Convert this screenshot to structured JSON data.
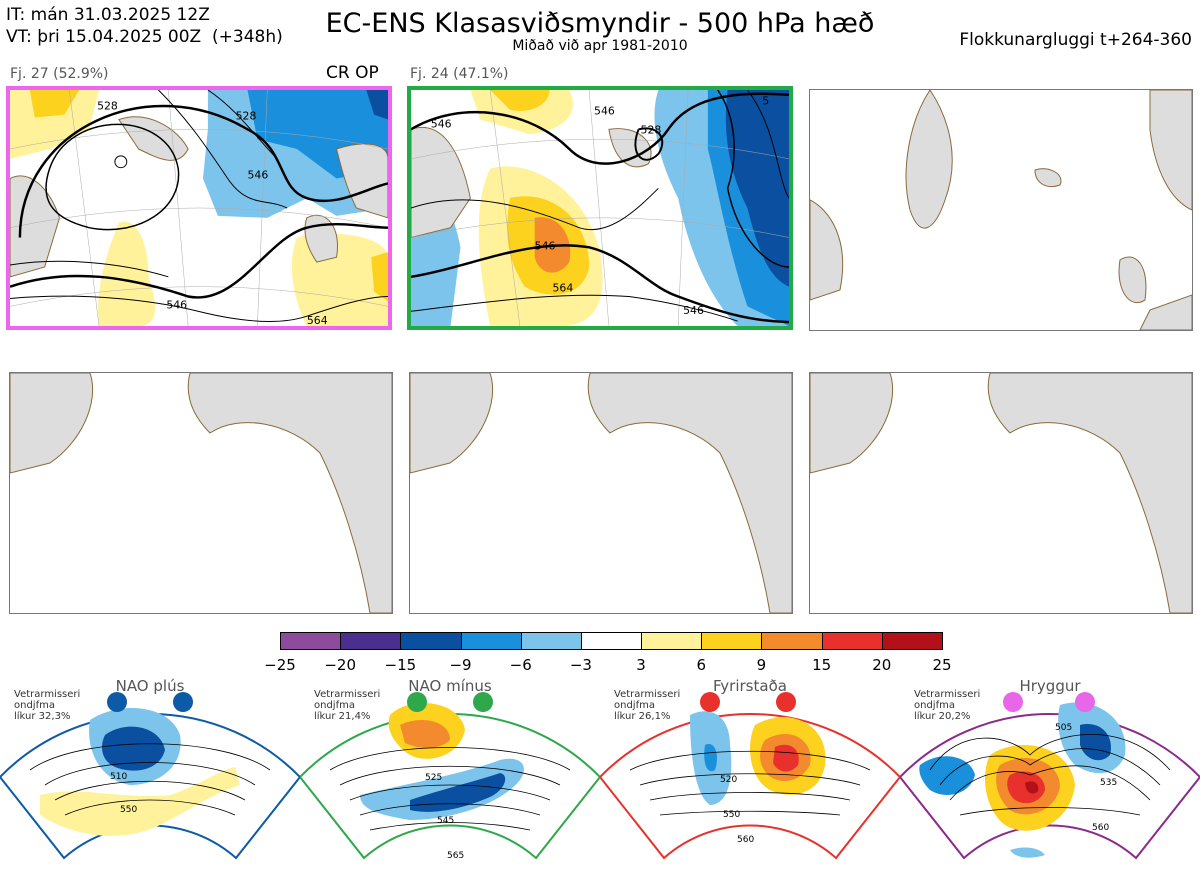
{
  "header": {
    "it_line": "IT: mán 31.03.2025 12Z",
    "vt_line": "VT: þri 15.04.2025 00Z  (+348h)",
    "title": "EC-ENS Klasasviðsmyndir - 500 hPa hæð",
    "subtitle": "Miðað við apr 1981-2010",
    "window": "Flokkunargluggi t+264-360"
  },
  "clusters": [
    {
      "label": "Fj. 27 (52.9%)",
      "tag": "CR OP",
      "frame_color": "#ee66ee",
      "contour_labels": [
        "528",
        "528",
        "546",
        "546",
        "564"
      ]
    },
    {
      "label": "Fj. 24 (47.1%)",
      "tag": "",
      "frame_color": "#22aa44",
      "contour_labels": [
        "546",
        "546",
        "528",
        "546",
        "564",
        "546",
        "5"
      ]
    }
  ],
  "colors": {
    "land": "#dddddd",
    "coast": "#8a6a3a"
  },
  "chart_data": {
    "type": "heatmap",
    "title": "EC-ENS Klasasviðsmyndir - 500 hPa hæð",
    "colorbar": {
      "ticks": [
        "−25",
        "−20",
        "−15",
        "−9",
        "−6",
        "−3",
        "3",
        "6",
        "9",
        "15",
        "20",
        "25"
      ],
      "bins": [
        {
          "from": -25,
          "to": -20,
          "color": "#8e4b9e"
        },
        {
          "from": -20,
          "to": -15,
          "color": "#4a2f8f"
        },
        {
          "from": -15,
          "to": -9,
          "color": "#0a4fa0"
        },
        {
          "from": -9,
          "to": -6,
          "color": "#1a8fdc"
        },
        {
          "from": -6,
          "to": -3,
          "color": "#7cc4ec"
        },
        {
          "from": -3,
          "to": 3,
          "color": "#ffffff"
        },
        {
          "from": 3,
          "to": 6,
          "color": "#fff29a"
        },
        {
          "from": 6,
          "to": 9,
          "color": "#fdd21e"
        },
        {
          "from": 9,
          "to": 15,
          "color": "#f48a2e"
        },
        {
          "from": 15,
          "to": 20,
          "color": "#e8312c"
        },
        {
          "from": 20,
          "to": 25,
          "color": "#b2101a"
        }
      ]
    }
  },
  "regimes": [
    {
      "name": "NAO plús",
      "info": [
        "Vetrarmisseri",
        "ondjfma",
        "líkur 32,3%"
      ],
      "color": "#0d5aa7",
      "labels": [
        "510",
        "550"
      ]
    },
    {
      "name": "NAO mínus",
      "info": [
        "Vetrarmisseri",
        "ondjfma",
        "líkur 21,4%"
      ],
      "color": "#2ea84a",
      "labels": [
        "525",
        "545",
        "565"
      ]
    },
    {
      "name": "Fyrirstaða",
      "info": [
        "Vetrarmisseri",
        "ondjfma",
        "líkur 26,1%"
      ],
      "color": "#e8312c",
      "labels": [
        "520",
        "550",
        "560"
      ]
    },
    {
      "name": "Hryggur",
      "info": [
        "Vetrarmisseri",
        "ondjfma",
        "líkur 20,2%"
      ],
      "color": "#e866e8",
      "labels": [
        "505",
        "535",
        "560"
      ]
    }
  ]
}
